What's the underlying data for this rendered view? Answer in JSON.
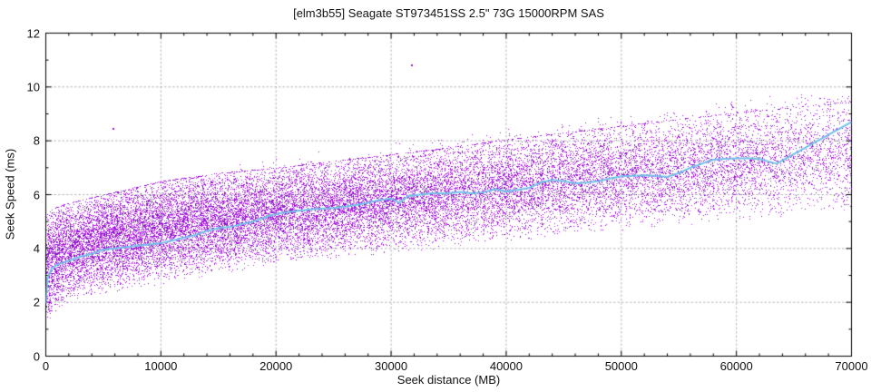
{
  "chart_data": {
    "type": "scatter",
    "title": "[elm3b55] Seagate ST973451SS 2.5\" 73G 15000RPM SAS",
    "xlabel": "Seek distance (MB)",
    "ylabel": "Seek Speed (ms)",
    "xlim": [
      0,
      70000
    ],
    "ylim": [
      0,
      12
    ],
    "x_major_ticks": [
      0,
      10000,
      20000,
      30000,
      40000,
      50000,
      60000,
      70000
    ],
    "x_minor_step": 2000,
    "y_major_ticks": [
      0,
      2,
      4,
      6,
      8,
      10,
      12
    ],
    "y_minor_step": 1,
    "grid": {
      "show": true,
      "color": "#b5b5b5",
      "dash": [
        2.5,
        2
      ]
    },
    "legend": "none",
    "colors": {
      "background": "#ffffff",
      "axis": "#000000",
      "text": "#111111",
      "scatter": "#9d13dd",
      "scatter_alt": [
        "#b43ae8",
        "#8306bf"
      ],
      "line": "#72c2e9"
    },
    "series": [
      {
        "type": "scatter",
        "marker": "pixel-dot",
        "count": 26000,
        "seed": 1337,
        "density_falloff": 0.75,
        "envelope_x": [
          0,
          500,
          1000,
          2000,
          3000,
          5000,
          7000,
          10000,
          15000,
          20000,
          25000,
          30000,
          35000,
          40000,
          45000,
          50000,
          55000,
          60000,
          65000,
          70000
        ],
        "envelope_lower": [
          0.8,
          1.3,
          1.5,
          1.75,
          1.95,
          2.15,
          2.3,
          2.5,
          2.9,
          3.2,
          3.45,
          3.6,
          3.85,
          4.1,
          4.3,
          4.5,
          4.65,
          4.8,
          4.95,
          5.1
        ],
        "envelope_upper": [
          5.2,
          5.45,
          5.55,
          5.7,
          5.8,
          6.0,
          6.2,
          6.5,
          6.8,
          7.0,
          7.25,
          7.5,
          7.75,
          8.05,
          8.3,
          8.55,
          8.8,
          9.05,
          9.25,
          9.45
        ],
        "outliers": [
          [
            31800,
            10.82
          ],
          [
            5900,
            8.44
          ]
        ]
      },
      {
        "type": "line",
        "points": [
          [
            0,
            1.95
          ],
          [
            150,
            2.9
          ],
          [
            500,
            3.25
          ],
          [
            1000,
            3.4
          ],
          [
            2000,
            3.55
          ],
          [
            3000,
            3.7
          ],
          [
            4000,
            3.8
          ],
          [
            5000,
            3.95
          ],
          [
            7000,
            4.05
          ],
          [
            8000,
            4.1
          ],
          [
            10000,
            4.2
          ],
          [
            11000,
            4.3
          ],
          [
            12000,
            4.4
          ],
          [
            13000,
            4.5
          ],
          [
            14000,
            4.65
          ],
          [
            15000,
            4.75
          ],
          [
            16000,
            4.8
          ],
          [
            17000,
            4.9
          ],
          [
            18000,
            5.0
          ],
          [
            19000,
            5.15
          ],
          [
            20000,
            5.28
          ],
          [
            21000,
            5.35
          ],
          [
            22000,
            5.4
          ],
          [
            23000,
            5.45
          ],
          [
            25000,
            5.5
          ],
          [
            26000,
            5.55
          ],
          [
            27000,
            5.62
          ],
          [
            28000,
            5.7
          ],
          [
            29000,
            5.8
          ],
          [
            30000,
            5.85
          ],
          [
            30700,
            5.7
          ],
          [
            31500,
            5.95
          ],
          [
            32500,
            6.0
          ],
          [
            33500,
            6.05
          ],
          [
            35000,
            6.05
          ],
          [
            36000,
            6.1
          ],
          [
            37000,
            6.05
          ],
          [
            38000,
            6.08
          ],
          [
            39000,
            6.2
          ],
          [
            40000,
            6.12
          ],
          [
            41000,
            6.18
          ],
          [
            42000,
            6.25
          ],
          [
            43000,
            6.45
          ],
          [
            44000,
            6.55
          ],
          [
            45000,
            6.5
          ],
          [
            46000,
            6.42
          ],
          [
            47000,
            6.45
          ],
          [
            48000,
            6.5
          ],
          [
            49000,
            6.6
          ],
          [
            50000,
            6.68
          ],
          [
            51000,
            6.7
          ],
          [
            52000,
            6.72
          ],
          [
            53000,
            6.7
          ],
          [
            54000,
            6.66
          ],
          [
            55000,
            6.8
          ],
          [
            56000,
            7.0
          ],
          [
            57000,
            7.15
          ],
          [
            58000,
            7.3
          ],
          [
            59000,
            7.33
          ],
          [
            60000,
            7.35
          ],
          [
            61000,
            7.35
          ],
          [
            62000,
            7.33
          ],
          [
            63000,
            7.2
          ],
          [
            63500,
            7.15
          ],
          [
            70000,
            8.7
          ]
        ]
      }
    ]
  }
}
